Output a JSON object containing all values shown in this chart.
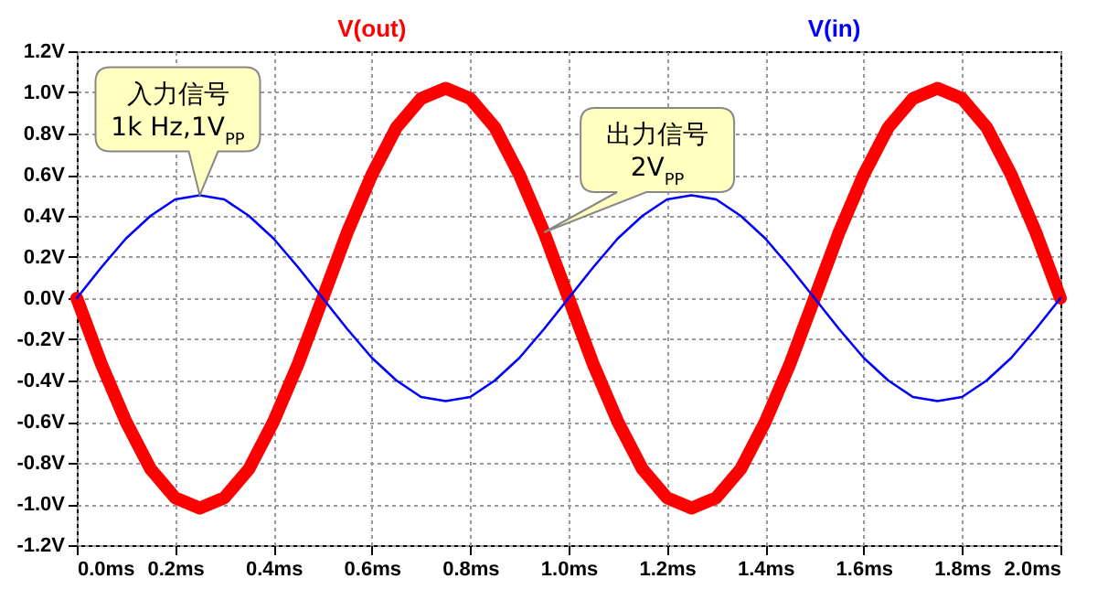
{
  "chart_data": {
    "type": "line",
    "x": [
      0,
      0.05,
      0.1,
      0.15,
      0.2,
      0.25,
      0.3,
      0.35,
      0.4,
      0.45,
      0.5,
      0.55,
      0.6,
      0.65,
      0.7,
      0.75,
      0.8,
      0.85,
      0.9,
      0.95,
      1.0,
      1.05,
      1.1,
      1.15,
      1.2,
      1.25,
      1.3,
      1.35,
      1.4,
      1.45,
      1.5,
      1.55,
      1.6,
      1.65,
      1.7,
      1.75,
      1.8,
      1.85,
      1.9,
      1.95,
      2.0
    ],
    "series": [
      {
        "name": "V(out)",
        "color": "#ff0000",
        "values": [
          0,
          -0.32,
          -0.6,
          -0.83,
          -0.97,
          -1.02,
          -0.97,
          -0.83,
          -0.6,
          -0.32,
          0,
          0.32,
          0.6,
          0.83,
          0.97,
          1.02,
          0.97,
          0.83,
          0.6,
          0.32,
          0,
          -0.32,
          -0.6,
          -0.83,
          -0.97,
          -1.02,
          -0.97,
          -0.83,
          -0.6,
          -0.32,
          0,
          0.32,
          0.6,
          0.83,
          0.97,
          1.02,
          0.97,
          0.83,
          0.6,
          0.32,
          0
        ]
      },
      {
        "name": "V(in)",
        "color": "#0000ff",
        "values": [
          0,
          0.15,
          0.29,
          0.4,
          0.48,
          0.5,
          0.48,
          0.4,
          0.29,
          0.15,
          0,
          -0.15,
          -0.29,
          -0.4,
          -0.48,
          -0.5,
          -0.48,
          -0.4,
          -0.29,
          -0.15,
          0,
          0.15,
          0.29,
          0.4,
          0.48,
          0.5,
          0.48,
          0.4,
          0.29,
          0.15,
          0,
          -0.15,
          -0.29,
          -0.4,
          -0.48,
          -0.5,
          -0.48,
          -0.4,
          -0.29,
          -0.15,
          0
        ]
      }
    ],
    "xlim": [
      0,
      2.0
    ],
    "xticks": [
      {
        "value": 0,
        "label": "0.0ms"
      },
      {
        "value": 0.2,
        "label": "0.2ms"
      },
      {
        "value": 0.4,
        "label": "0.4ms"
      },
      {
        "value": 0.6,
        "label": "0.6ms"
      },
      {
        "value": 0.8,
        "label": "0.8ms"
      },
      {
        "value": 1.0,
        "label": "1.0ms"
      },
      {
        "value": 1.2,
        "label": "1.2ms"
      },
      {
        "value": 1.4,
        "label": "1.4ms"
      },
      {
        "value": 1.6,
        "label": "1.6ms"
      },
      {
        "value": 1.8,
        "label": "1.8ms"
      },
      {
        "value": 2.0,
        "label": "2.0ms"
      }
    ],
    "ylim": [
      -1.2,
      1.2
    ],
    "yticks": [
      {
        "value": -1.2,
        "label": "-1.2V"
      },
      {
        "value": -1.0,
        "label": "-1.0V"
      },
      {
        "value": -0.8,
        "label": "-0.8V"
      },
      {
        "value": -0.6,
        "label": "-0.6V"
      },
      {
        "value": -0.4,
        "label": "-0.4V"
      },
      {
        "value": -0.2,
        "label": "-0.2V"
      },
      {
        "value": 0,
        "label": "0.0V"
      },
      {
        "value": 0.2,
        "label": "0.2V"
      },
      {
        "value": 0.4,
        "label": "0.4V"
      },
      {
        "value": 0.6,
        "label": "0.6V"
      },
      {
        "value": 0.8,
        "label": "0.8V"
      },
      {
        "value": 1.0,
        "label": "1.0V"
      },
      {
        "value": 1.2,
        "label": "1.2V"
      }
    ],
    "grid": true,
    "annotations": [
      {
        "text": "入力信号\n1k Hz,1V$_{PP}$",
        "x": 0.25,
        "y": 0.5
      },
      {
        "text": "出力信号\n2V$_{PP}$",
        "x": 0.95,
        "y": 0.32
      }
    ]
  }
}
